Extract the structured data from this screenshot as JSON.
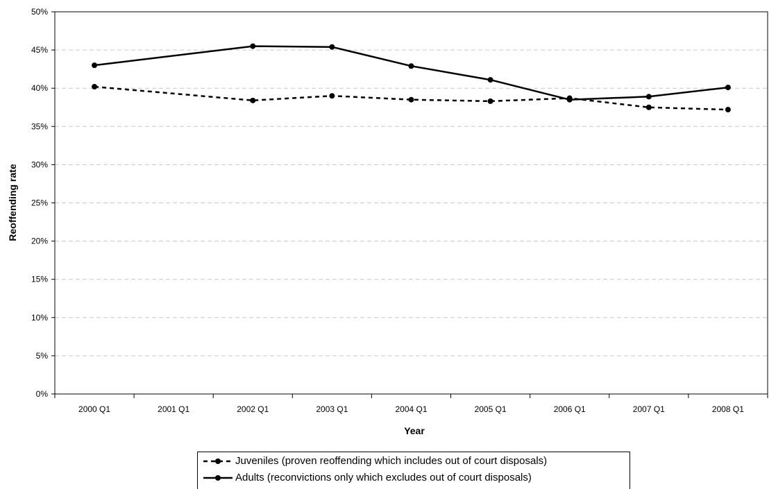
{
  "chart_data": {
    "type": "line",
    "title": "",
    "xlabel": "Year",
    "ylabel": "Reoffending rate",
    "categories": [
      "2000 Q1",
      "2001 Q1",
      "2002 Q1",
      "2003 Q1",
      "2004 Q1",
      "2005 Q1",
      "2006 Q1",
      "2007 Q1",
      "2008 Q1"
    ],
    "ylim": [
      0,
      0.5
    ],
    "yticks": [
      "0%",
      "5%",
      "10%",
      "15%",
      "20%",
      "25%",
      "30%",
      "35%",
      "40%",
      "45%",
      "50%"
    ],
    "grid": "horizontal dashed",
    "legend": "bottom",
    "series": [
      {
        "name": "Juveniles (proven reoffending which includes out of court disposals)",
        "style": "dashed",
        "color": "#000000",
        "x": [
          "2000 Q1",
          "2002 Q1",
          "2003 Q1",
          "2004 Q1",
          "2005 Q1",
          "2006 Q1",
          "2007 Q1",
          "2008 Q1"
        ],
        "values": [
          0.402,
          0.384,
          0.39,
          0.385,
          0.383,
          0.387,
          0.375,
          0.372
        ]
      },
      {
        "name": "Adults (reconvictions only which excludes out of court disposals)",
        "style": "solid",
        "color": "#000000",
        "x": [
          "2000 Q1",
          "2002 Q1",
          "2003 Q1",
          "2004 Q1",
          "2005 Q1",
          "2006 Q1",
          "2007 Q1",
          "2008 Q1"
        ],
        "values": [
          0.43,
          0.455,
          0.454,
          0.429,
          0.411,
          0.385,
          0.389,
          0.401
        ]
      }
    ]
  }
}
